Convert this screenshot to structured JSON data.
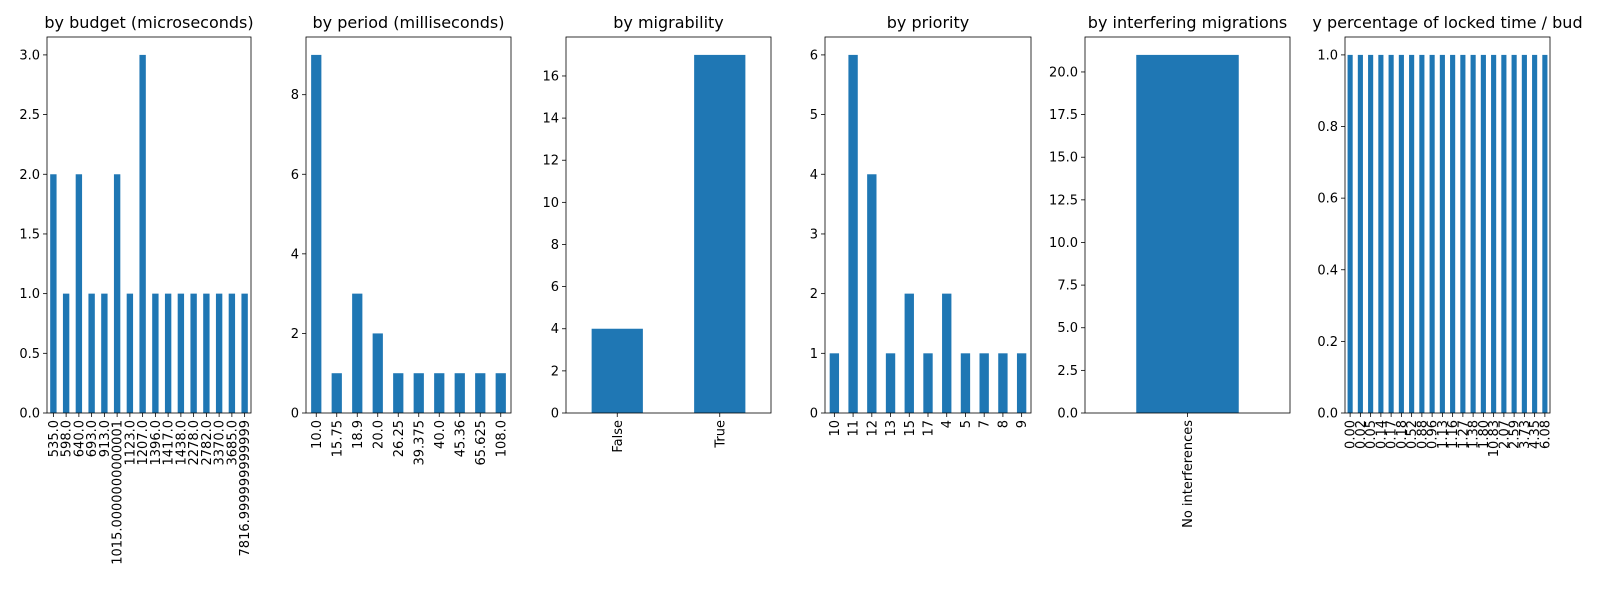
{
  "figure": {
    "bar_color": "#1f77b4",
    "axis_color": "#000000",
    "background": "#ffffff"
  },
  "chart_data": [
    {
      "type": "bar",
      "title": "by budget (microseconds)",
      "categories": [
        "535.0",
        "598.0",
        "640.0",
        "693.0",
        "913.0",
        "1015.0000000000001",
        "1123.0",
        "1207.0",
        "1396.0",
        "1417.0",
        "1438.0",
        "2278.0",
        "2782.0",
        "3370.0",
        "3685.0",
        "7816.999999999999"
      ],
      "values": [
        2,
        1,
        2,
        1,
        1,
        2,
        1,
        3,
        1,
        1,
        1,
        1,
        1,
        1,
        1,
        1
      ],
      "ylim": [
        0,
        3.15
      ],
      "yticks": [
        0,
        0.5,
        1,
        1.5,
        2,
        2.5,
        3
      ],
      "ytick_labels": [
        "0.0",
        "0.5",
        "1.0",
        "1.5",
        "2.0",
        "2.5",
        "3.0"
      ],
      "xlabel": "",
      "ylabel": "",
      "grid": false
    },
    {
      "type": "bar",
      "title": "by period (milliseconds)",
      "categories": [
        "10.0",
        "15.75",
        "18.9",
        "20.0",
        "26.25",
        "39.375",
        "40.0",
        "45.36",
        "65.625",
        "108.0"
      ],
      "values": [
        9,
        1,
        3,
        2,
        1,
        1,
        1,
        1,
        1,
        1
      ],
      "ylim": [
        0,
        9.45
      ],
      "yticks": [
        0,
        2,
        4,
        6,
        8
      ],
      "ytick_labels": [
        "0",
        "2",
        "4",
        "6",
        "8"
      ],
      "xlabel": "",
      "ylabel": "",
      "grid": false
    },
    {
      "type": "bar",
      "title": "by migrability",
      "categories": [
        "False",
        "True"
      ],
      "values": [
        4,
        17
      ],
      "ylim": [
        0,
        17.85
      ],
      "yticks": [
        0,
        2,
        4,
        6,
        8,
        10,
        12,
        14,
        16
      ],
      "ytick_labels": [
        "0",
        "2",
        "4",
        "6",
        "8",
        "10",
        "12",
        "14",
        "16"
      ],
      "xlabel": "",
      "ylabel": "",
      "grid": false
    },
    {
      "type": "bar",
      "title": "by priority",
      "categories": [
        "10",
        "11",
        "12",
        "13",
        "15",
        "17",
        "4",
        "5",
        "7",
        "8",
        "9"
      ],
      "values": [
        1,
        6,
        4,
        1,
        2,
        1,
        2,
        1,
        1,
        1,
        1
      ],
      "ylim": [
        0,
        6.3
      ],
      "yticks": [
        0,
        1,
        2,
        3,
        4,
        5,
        6
      ],
      "ytick_labels": [
        "0",
        "1",
        "2",
        "3",
        "4",
        "5",
        "6"
      ],
      "xlabel": "",
      "ylabel": "",
      "grid": false
    },
    {
      "type": "bar",
      "title": "by interfering migrations",
      "categories": [
        "No interferences"
      ],
      "values": [
        21
      ],
      "ylim": [
        0,
        22.05
      ],
      "yticks": [
        0,
        2.5,
        5,
        7.5,
        10,
        12.5,
        15,
        17.5,
        20
      ],
      "ytick_labels": [
        "0.0",
        "2.5",
        "5.0",
        "7.5",
        "10.0",
        "12.5",
        "15.0",
        "17.5",
        "20.0"
      ],
      "xlabel": "",
      "ylabel": "",
      "grid": false
    },
    {
      "type": "bar",
      "title": "y percentage of locked time / bud",
      "categories": [
        "0.00",
        "0.02",
        "0.05",
        "0.14",
        "0.17",
        "0.18",
        "0.52",
        "0.88",
        "0.96",
        "1.13",
        "1.16",
        "1.27",
        "1.38",
        "1.80",
        "10.83",
        "2.07",
        "2.59",
        "3.73",
        "4.35",
        "6.08"
      ],
      "values": [
        1,
        1,
        1,
        1,
        1,
        1,
        1,
        1,
        1,
        1,
        1,
        1,
        1,
        1,
        1,
        1,
        1,
        1,
        1,
        1
      ],
      "ylim": [
        0,
        1.05
      ],
      "yticks": [
        0,
        0.2,
        0.4,
        0.6,
        0.8,
        1.0
      ],
      "ytick_labels": [
        "0.0",
        "0.2",
        "0.4",
        "0.6",
        "0.8",
        "1.0"
      ],
      "xlabel": "",
      "ylabel": "",
      "grid": false
    }
  ]
}
